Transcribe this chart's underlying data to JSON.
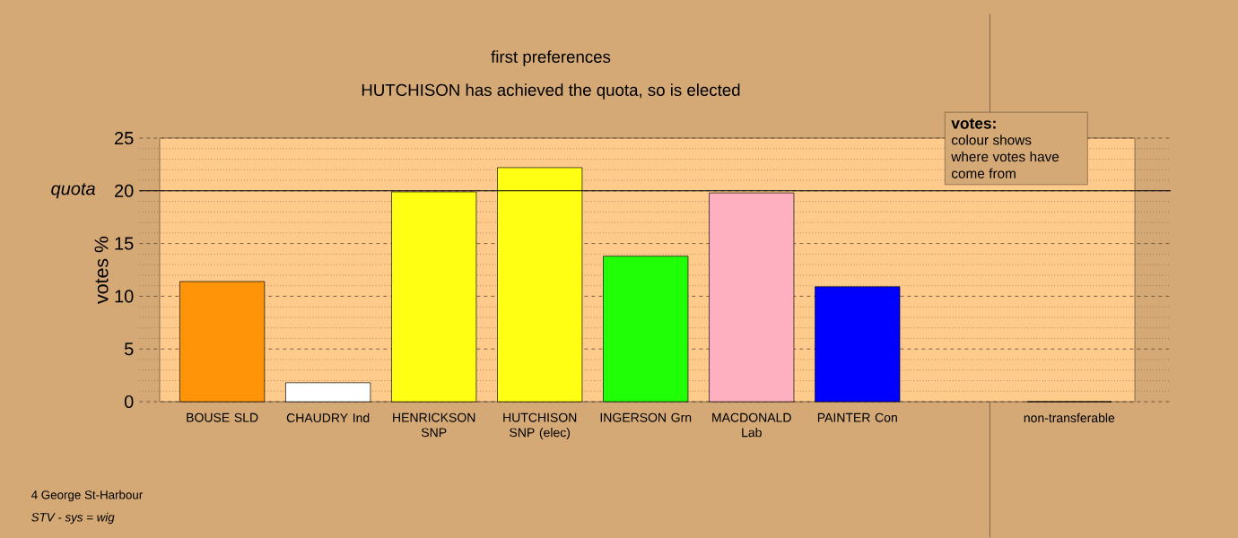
{
  "chart_data": {
    "type": "bar",
    "title": "first preferences",
    "subtitle": "HUTCHISON has achieved the quota, so is elected",
    "ylabel": "votes %",
    "categories": [
      "BOUSE SLD",
      "CHAUDRY Ind",
      "HENRICKSON SNP",
      "HUTCHISON SNP (elec)",
      "INGERSON Grn",
      "MACDONALD Lab",
      "PAINTER Con",
      null,
      "non-transferable"
    ],
    "values": [
      11.4,
      1.8,
      19.9,
      22.2,
      13.8,
      19.8,
      10.9,
      null,
      0
    ],
    "colors": [
      "#ff9408",
      "#ffffff",
      "#ffff14",
      "#ffff14",
      "#21ff06",
      "#ffb0c0",
      "#0000ff",
      "#ffffff",
      "#ffffff"
    ],
    "ylim": [
      0,
      25
    ],
    "yticks": [
      0,
      {
        "value": 1,
        "label": null
      },
      {
        "value": 2,
        "label": null
      },
      {
        "value": 3,
        "label": null
      },
      {
        "value": 4,
        "label": null
      },
      5,
      {
        "value": 6,
        "label": null
      },
      {
        "value": 7,
        "label": null
      },
      {
        "value": 8,
        "label": null
      },
      {
        "value": 9,
        "label": null
      },
      10,
      {
        "value": 11,
        "label": null
      },
      {
        "value": 12,
        "label": null
      },
      {
        "value": 13,
        "label": null
      },
      {
        "value": 14,
        "label": null
      },
      15,
      {
        "value": 16,
        "label": null
      },
      {
        "value": 17,
        "label": null
      },
      {
        "value": 18,
        "label": null
      },
      {
        "value": 19,
        "label": null
      },
      20,
      {
        "value": 21,
        "label": null
      },
      {
        "value": 22,
        "label": null
      },
      {
        "value": 23,
        "label": null
      },
      {
        "value": 24,
        "label": null
      },
      25
    ],
    "grid": "y",
    "ref_lines": [
      {
        "axis": "y",
        "value": 20,
        "label": "quota",
        "color": "#000000"
      }
    ],
    "annotations": [
      "votes:",
      "colour shows where votes have come from",
      "4 George St-Harbour",
      "STV - sys = wig"
    ]
  }
}
